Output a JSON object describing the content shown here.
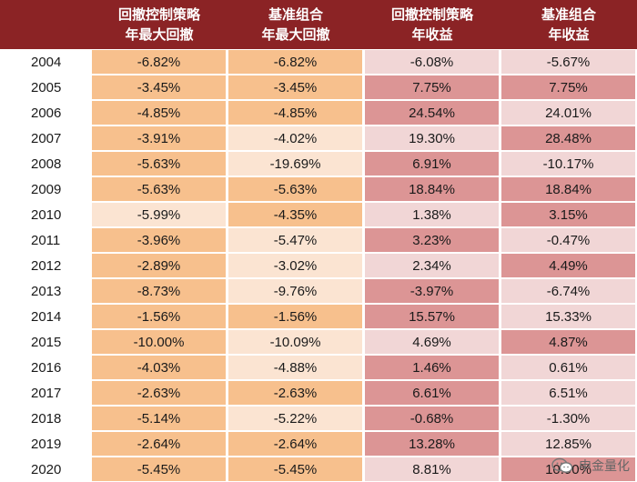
{
  "header": {
    "col1": [
      "回撤控制策略",
      "年最大回撤"
    ],
    "col2": [
      "基准组合",
      "年最大回撤"
    ],
    "col3": [
      "回撤控制策略",
      "年收益"
    ],
    "col4": [
      "基准组合",
      "年收益"
    ]
  },
  "colors": {
    "header_bg": "#8b2325",
    "orange_dark": "#f7c08d",
    "orange_light": "#fbe4d2",
    "pink_dark": "#dc9595",
    "pink_light": "#f1d6d6"
  },
  "rows": [
    {
      "year": "2004",
      "v1": "-6.82%",
      "v2": "-6.82%",
      "v3": "-6.08%",
      "v4": "-5.67%"
    },
    {
      "year": "2005",
      "v1": "-3.45%",
      "v2": "-3.45%",
      "v3": "7.75%",
      "v4": "7.75%"
    },
    {
      "year": "2006",
      "v1": "-4.85%",
      "v2": "-4.85%",
      "v3": "24.54%",
      "v4": "24.01%"
    },
    {
      "year": "2007",
      "v1": "-3.91%",
      "v2": "-4.02%",
      "v3": "19.30%",
      "v4": "28.48%"
    },
    {
      "year": "2008",
      "v1": "-5.63%",
      "v2": "-19.69%",
      "v3": "6.91%",
      "v4": "-10.17%"
    },
    {
      "year": "2009",
      "v1": "-5.63%",
      "v2": "-5.63%",
      "v3": "18.84%",
      "v4": "18.84%"
    },
    {
      "year": "2010",
      "v1": "-5.99%",
      "v2": "-4.35%",
      "v3": "1.38%",
      "v4": "3.15%"
    },
    {
      "year": "2011",
      "v1": "-3.96%",
      "v2": "-5.47%",
      "v3": "3.23%",
      "v4": "-0.47%"
    },
    {
      "year": "2012",
      "v1": "-2.89%",
      "v2": "-3.02%",
      "v3": "2.34%",
      "v4": "4.49%"
    },
    {
      "year": "2013",
      "v1": "-8.73%",
      "v2": "-9.76%",
      "v3": "-3.97%",
      "v4": "-6.74%"
    },
    {
      "year": "2014",
      "v1": "-1.56%",
      "v2": "-1.56%",
      "v3": "15.57%",
      "v4": "15.33%"
    },
    {
      "year": "2015",
      "v1": "-10.00%",
      "v2": "-10.09%",
      "v3": "4.69%",
      "v4": "4.87%"
    },
    {
      "year": "2016",
      "v1": "-4.03%",
      "v2": "-4.88%",
      "v3": "1.46%",
      "v4": "0.61%"
    },
    {
      "year": "2017",
      "v1": "-2.63%",
      "v2": "-2.63%",
      "v3": "6.61%",
      "v4": "6.51%"
    },
    {
      "year": "2018",
      "v1": "-5.14%",
      "v2": "-5.22%",
      "v3": "-0.68%",
      "v4": "-1.30%"
    },
    {
      "year": "2019",
      "v1": "-2.64%",
      "v2": "-2.64%",
      "v3": "13.28%",
      "v4": "12.85%"
    },
    {
      "year": "2020",
      "v1": "-5.45%",
      "v2": "-5.45%",
      "v3": "8.81%",
      "v4": "10.90%"
    }
  ],
  "shading": [
    [
      "d",
      "d",
      "l",
      "l"
    ],
    [
      "d",
      "d",
      "d",
      "d"
    ],
    [
      "d",
      "d",
      "d",
      "l"
    ],
    [
      "d",
      "l",
      "l",
      "d"
    ],
    [
      "d",
      "l",
      "d",
      "l"
    ],
    [
      "d",
      "d",
      "d",
      "d"
    ],
    [
      "l",
      "d",
      "l",
      "d"
    ],
    [
      "d",
      "l",
      "d",
      "l"
    ],
    [
      "d",
      "l",
      "l",
      "d"
    ],
    [
      "d",
      "l",
      "d",
      "l"
    ],
    [
      "d",
      "d",
      "d",
      "l"
    ],
    [
      "d",
      "l",
      "l",
      "d"
    ],
    [
      "d",
      "l",
      "d",
      "l"
    ],
    [
      "d",
      "d",
      "d",
      "l"
    ],
    [
      "d",
      "l",
      "d",
      "l"
    ],
    [
      "d",
      "d",
      "d",
      "l"
    ],
    [
      "d",
      "d",
      "l",
      "d"
    ]
  ],
  "watermark": {
    "icon": "wechat-icon",
    "text": "申金量化"
  }
}
